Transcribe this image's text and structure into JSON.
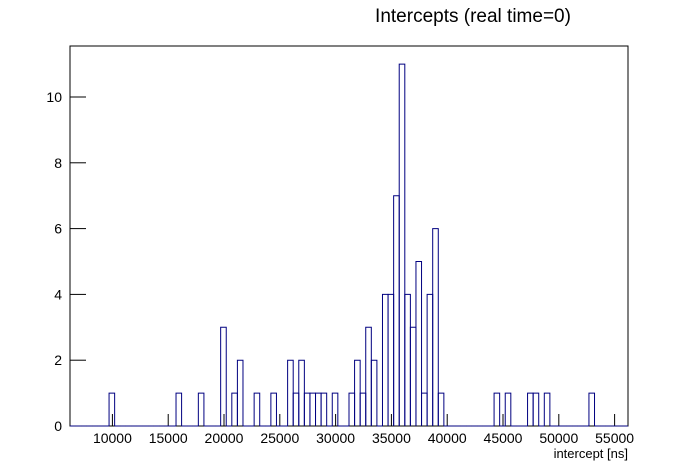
{
  "chart_data": {
    "type": "histogram",
    "title": "Intercepts (real time=0)",
    "x_label": "intercept [ns]",
    "color": "#000080",
    "bins": [
      6200,
      6700,
      7200,
      7700,
      8200,
      8700,
      9200,
      9700,
      10200,
      10700,
      11200,
      11700,
      12200,
      12700,
      13200,
      13700,
      14200,
      14700,
      15200,
      15700,
      16200,
      16700,
      17200,
      17700,
      18200,
      18700,
      19200,
      19700,
      20200,
      20700,
      21200,
      21700,
      22200,
      22700,
      23200,
      23700,
      24200,
      24700,
      25200,
      25700,
      26200,
      26700,
      27200,
      27700,
      28200,
      28700,
      29200,
      29700,
      30200,
      30700,
      31200,
      31700,
      32200,
      32700,
      33200,
      33700,
      34200,
      34700,
      35200,
      35700,
      36200,
      36700,
      37200,
      37700,
      38200,
      38700,
      39200,
      39700,
      40200,
      40700,
      41200,
      41700,
      42200,
      42700,
      43200,
      43700,
      44200,
      44700,
      45200,
      45700,
      46200,
      46700,
      47200,
      47700,
      48200,
      48700,
      49200,
      49700,
      50200,
      50700,
      51200,
      51700,
      52200,
      52700,
      53200,
      53700,
      54200,
      54700,
      55200,
      55700,
      56200
    ],
    "values": [
      0,
      0,
      0,
      0,
      0,
      0,
      0,
      1,
      0,
      0,
      0,
      0,
      0,
      0,
      0,
      0,
      0,
      0,
      0,
      1,
      0,
      0,
      0,
      1,
      0,
      0,
      0,
      3,
      0,
      1,
      2,
      0,
      0,
      1,
      0,
      0,
      1,
      0,
      0,
      2,
      1,
      2,
      1,
      1,
      1,
      1,
      0,
      1,
      0,
      0,
      1,
      2,
      1,
      3,
      2,
      0,
      4,
      4,
      7,
      11,
      4,
      3,
      5,
      1,
      4,
      6,
      1,
      0,
      0,
      0,
      0,
      0,
      0,
      0,
      0,
      0,
      1,
      0,
      1,
      0,
      0,
      0,
      1,
      1,
      0,
      1,
      0,
      0,
      0,
      0,
      0,
      0,
      0,
      1,
      0,
      0,
      0,
      0,
      0,
      0
    ],
    "xlim": [
      6200,
      56200
    ],
    "xticks": [
      10000,
      15000,
      20000,
      25000,
      30000,
      35000,
      40000,
      45000,
      50000,
      55000
    ],
    "ylim": [
      0,
      11.55
    ],
    "yticks": [
      0,
      2,
      4,
      6,
      8,
      10
    ]
  }
}
